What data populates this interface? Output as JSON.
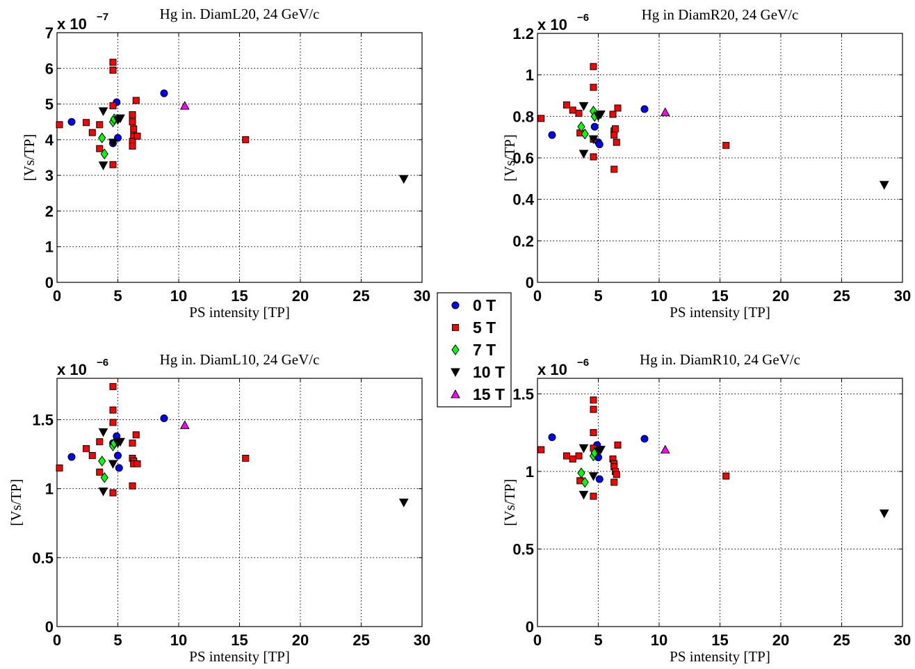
{
  "legend": [
    {
      "key": "0T",
      "label": "0 T",
      "marker": "circle",
      "color": "#0000ff"
    },
    {
      "key": "5T",
      "label": "5 T",
      "marker": "square",
      "color": "#ff0000"
    },
    {
      "key": "7T",
      "label": "7 T",
      "marker": "diamond",
      "color": "#00ff00"
    },
    {
      "key": "10T",
      "label": "10 T",
      "marker": "triangle-down",
      "color": "#000000"
    },
    {
      "key": "15T",
      "label": "15 T",
      "marker": "triangle-up",
      "color": "#ff00ff"
    }
  ],
  "chart_data": [
    {
      "type": "scatter",
      "title": "Hg in. DiamL20, 24 GeV/c",
      "xlabel": "PS intensity [TP]",
      "ylabel": "[Vs/TP]",
      "multiplier": {
        "base": "x 10",
        "exp": "−7"
      },
      "xlim": [
        0,
        30
      ],
      "ylim": [
        0,
        7
      ],
      "xticks": [
        0,
        5,
        10,
        15,
        20,
        25,
        30
      ],
      "yticks": [
        0,
        1,
        2,
        3,
        4,
        5,
        6,
        7
      ],
      "ytick_labels": [
        "0",
        "1",
        "2",
        "3",
        "4",
        "5",
        "6",
        "7"
      ],
      "grid": true,
      "series": [
        {
          "name": "0 T",
          "points": [
            [
              1.2,
              4.5
            ],
            [
              4.9,
              5.05
            ],
            [
              5.0,
              4.05
            ],
            [
              8.8,
              5.3
            ],
            [
              4.6,
              3.9
            ]
          ]
        },
        {
          "name": "5 T",
          "points": [
            [
              0.2,
              4.42
            ],
            [
              2.4,
              4.48
            ],
            [
              2.9,
              4.2
            ],
            [
              3.5,
              4.42
            ],
            [
              3.5,
              3.75
            ],
            [
              4.6,
              6.17
            ],
            [
              4.6,
              5.95
            ],
            [
              4.6,
              4.95
            ],
            [
              4.6,
              3.3
            ],
            [
              6.2,
              4.7
            ],
            [
              6.2,
              4.5
            ],
            [
              6.3,
              4.3
            ],
            [
              6.3,
              4.1
            ],
            [
              6.2,
              3.95
            ],
            [
              6.2,
              3.82
            ],
            [
              6.5,
              5.1
            ],
            [
              6.6,
              4.1
            ],
            [
              15.5,
              4.0
            ]
          ]
        },
        {
          "name": "7 T",
          "points": [
            [
              3.7,
              4.05
            ],
            [
              3.9,
              3.6
            ],
            [
              4.6,
              4.5
            ],
            [
              4.7,
              4.58
            ]
          ]
        },
        {
          "name": "10 T",
          "points": [
            [
              3.8,
              4.8
            ],
            [
              3.8,
              3.28
            ],
            [
              4.6,
              3.92
            ],
            [
              5.0,
              4.55
            ],
            [
              5.2,
              4.6
            ],
            [
              28.5,
              2.9
            ]
          ]
        },
        {
          "name": "15 T",
          "points": [
            [
              10.5,
              4.95
            ]
          ]
        }
      ]
    },
    {
      "type": "scatter",
      "title": "Hg in DiamR20, 24 GeV/c",
      "xlabel": "PS intensity [TP]",
      "ylabel": "[Vs/TP]",
      "multiplier": {
        "base": "x 10",
        "exp": "−6"
      },
      "xlim": [
        0,
        30
      ],
      "ylim": [
        0,
        1.2
      ],
      "xticks": [
        0,
        5,
        10,
        15,
        20,
        25,
        30
      ],
      "yticks": [
        0,
        0.2,
        0.4,
        0.6,
        0.8,
        1.0,
        1.2
      ],
      "ytick_labels": [
        "0",
        "0.2",
        "0.4",
        "0.6",
        "0.8",
        "1",
        "1.2"
      ],
      "grid": true,
      "series": [
        {
          "name": "0 T",
          "points": [
            [
              1.2,
              0.71
            ],
            [
              4.7,
              0.75
            ],
            [
              4.9,
              0.81
            ],
            [
              5.0,
              0.675
            ],
            [
              5.1,
              0.665
            ],
            [
              8.8,
              0.835
            ]
          ]
        },
        {
          "name": "5 T",
          "points": [
            [
              0.3,
              0.79
            ],
            [
              2.4,
              0.855
            ],
            [
              2.9,
              0.83
            ],
            [
              3.4,
              0.815
            ],
            [
              3.5,
              0.72
            ],
            [
              4.6,
              1.04
            ],
            [
              4.6,
              0.94
            ],
            [
              4.6,
              0.69
            ],
            [
              4.6,
              0.605
            ],
            [
              6.2,
              0.81
            ],
            [
              6.3,
              0.73
            ],
            [
              6.3,
              0.71
            ],
            [
              6.4,
              0.74
            ],
            [
              6.5,
              0.675
            ],
            [
              6.6,
              0.84
            ],
            [
              6.3,
              0.545
            ],
            [
              15.5,
              0.66
            ]
          ]
        },
        {
          "name": "7 T",
          "points": [
            [
              3.6,
              0.75
            ],
            [
              3.9,
              0.715
            ],
            [
              4.6,
              0.825
            ],
            [
              4.7,
              0.8
            ]
          ]
        },
        {
          "name": "10 T",
          "points": [
            [
              3.8,
              0.85
            ],
            [
              3.8,
              0.62
            ],
            [
              4.6,
              0.69
            ],
            [
              5.0,
              0.8
            ],
            [
              5.2,
              0.81
            ],
            [
              28.5,
              0.47
            ]
          ]
        },
        {
          "name": "15 T",
          "points": [
            [
              10.5,
              0.82
            ]
          ]
        }
      ]
    },
    {
      "type": "scatter",
      "title": "Hg in. DiamL10, 24 GeV/c",
      "xlabel": "PS intensity [TP]",
      "ylabel": "[Vs/TP]",
      "multiplier": {
        "base": "x 10",
        "exp": "−6"
      },
      "xlim": [
        0,
        30
      ],
      "ylim": [
        0,
        1.8
      ],
      "xticks": [
        0,
        5,
        10,
        15,
        20,
        25,
        30
      ],
      "yticks": [
        0,
        0.5,
        1.0,
        1.5
      ],
      "ytick_labels": [
        "0",
        "0.5",
        "1",
        "1.5"
      ],
      "grid": true,
      "series": [
        {
          "name": "0 T",
          "points": [
            [
              1.2,
              1.23
            ],
            [
              4.9,
              1.38
            ],
            [
              5.0,
              1.24
            ],
            [
              5.1,
              1.15
            ],
            [
              8.8,
              1.51
            ],
            [
              4.6,
              1.33
            ]
          ]
        },
        {
          "name": "5 T",
          "points": [
            [
              0.2,
              1.15
            ],
            [
              2.4,
              1.29
            ],
            [
              2.9,
              1.24
            ],
            [
              3.5,
              1.34
            ],
            [
              3.5,
              1.12
            ],
            [
              4.6,
              1.74
            ],
            [
              4.6,
              1.57
            ],
            [
              4.6,
              1.48
            ],
            [
              4.6,
              0.97
            ],
            [
              6.2,
              1.33
            ],
            [
              6.2,
              1.22
            ],
            [
              6.3,
              1.2
            ],
            [
              6.3,
              1.18
            ],
            [
              6.2,
              1.02
            ],
            [
              6.5,
              1.39
            ],
            [
              6.6,
              1.18
            ],
            [
              15.5,
              1.22
            ]
          ]
        },
        {
          "name": "7 T",
          "points": [
            [
              3.7,
              1.2
            ],
            [
              3.9,
              1.08
            ],
            [
              4.6,
              1.31
            ],
            [
              4.7,
              1.33
            ]
          ]
        },
        {
          "name": "10 T",
          "points": [
            [
              3.8,
              1.41
            ],
            [
              3.8,
              0.98
            ],
            [
              4.6,
              1.18
            ],
            [
              5.0,
              1.33
            ],
            [
              5.2,
              1.34
            ],
            [
              28.5,
              0.9
            ]
          ]
        },
        {
          "name": "15 T",
          "points": [
            [
              10.5,
              1.46
            ]
          ]
        }
      ]
    },
    {
      "type": "scatter",
      "title": "Hg in. DiamR10, 24 GeV/c",
      "xlabel": "PS intensity [TP]",
      "ylabel": "[Vs/TP]",
      "multiplier": {
        "base": "x 10",
        "exp": "−6"
      },
      "xlim": [
        0,
        30
      ],
      "ylim": [
        0,
        1.6
      ],
      "xticks": [
        0,
        5,
        10,
        15,
        20,
        25,
        30
      ],
      "yticks": [
        0,
        0.5,
        1.0,
        1.5
      ],
      "ytick_labels": [
        "0",
        "0.5",
        "1",
        "1.5"
      ],
      "grid": true,
      "series": [
        {
          "name": "0 T",
          "points": [
            [
              1.2,
              1.22
            ],
            [
              4.9,
              1.17
            ],
            [
              5.0,
              1.09
            ],
            [
              5.1,
              0.95
            ],
            [
              8.8,
              1.21
            ]
          ]
        },
        {
          "name": "5 T",
          "points": [
            [
              0.3,
              1.14
            ],
            [
              2.4,
              1.1
            ],
            [
              2.9,
              1.08
            ],
            [
              3.4,
              1.1
            ],
            [
              3.5,
              0.94
            ],
            [
              4.6,
              1.46
            ],
            [
              4.6,
              1.4
            ],
            [
              4.6,
              1.25
            ],
            [
              4.6,
              1.15
            ],
            [
              4.6,
              0.84
            ],
            [
              6.2,
              1.08
            ],
            [
              6.3,
              1.05
            ],
            [
              6.3,
              1.03
            ],
            [
              6.4,
              1.0
            ],
            [
              6.5,
              0.98
            ],
            [
              6.6,
              1.17
            ],
            [
              6.3,
              0.93
            ],
            [
              15.5,
              0.97
            ]
          ]
        },
        {
          "name": "7 T",
          "points": [
            [
              3.6,
              0.99
            ],
            [
              3.9,
              0.93
            ],
            [
              4.6,
              1.1
            ],
            [
              4.7,
              1.12
            ]
          ]
        },
        {
          "name": "10 T",
          "points": [
            [
              3.8,
              1.15
            ],
            [
              3.8,
              0.85
            ],
            [
              4.6,
              0.97
            ],
            [
              5.0,
              1.13
            ],
            [
              5.2,
              1.14
            ],
            [
              28.5,
              0.73
            ]
          ]
        },
        {
          "name": "15 T",
          "points": [
            [
              10.5,
              1.14
            ]
          ]
        }
      ]
    }
  ]
}
